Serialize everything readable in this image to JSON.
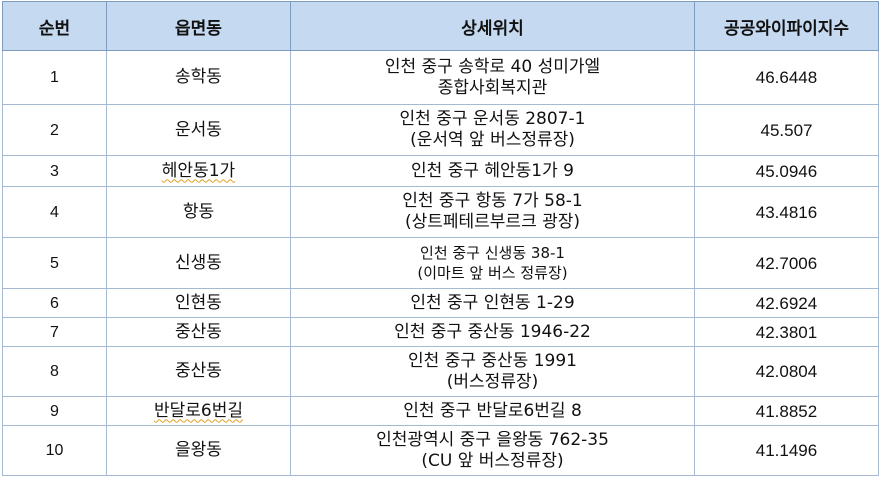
{
  "headers": {
    "rank": "순번",
    "dong": "읍면동",
    "location": "상세위치",
    "index": "공공와이파이지수"
  },
  "rows": [
    {
      "rank": "1",
      "dong": "송학동",
      "loc1": "인천 중구 송학로 40 성미가엘",
      "loc2": "종합사회복지관",
      "score": "46.6448"
    },
    {
      "rank": "2",
      "dong": "운서동",
      "loc1": "인천 중구 운서동 2807-1",
      "loc2": "(운서역 앞 버스정류장)",
      "score": "45.507"
    },
    {
      "rank": "3",
      "dong": "헤안동1가",
      "loc1": "인천 중구 헤안동1가 9",
      "loc2": "",
      "score": "45.0946"
    },
    {
      "rank": "4",
      "dong": "항동",
      "loc1": "인천 중구 항동 7가 58-1",
      "loc2": "(상트페테르부르크 광장)",
      "score": "43.4816"
    },
    {
      "rank": "5",
      "dong": "신생동",
      "loc1": "인천 중구 신생동 38-1",
      "loc2": "(이마트 앞 버스 정류장)",
      "score": "42.7006"
    },
    {
      "rank": "6",
      "dong": "인현동",
      "loc1": "인천 중구 인현동 1-29",
      "loc2": "",
      "score": "42.6924"
    },
    {
      "rank": "7",
      "dong": "중산동",
      "loc1": "인천 중구 중산동 1946-22",
      "loc2": "",
      "score": "42.3801"
    },
    {
      "rank": "8",
      "dong": "중산동",
      "loc1": "인천 중구 중산동 1991",
      "loc2": "(버스정류장)",
      "score": "42.0804"
    },
    {
      "rank": "9",
      "dong": "반달로6번길",
      "loc1": "인천 중구 반달로6번길 8",
      "loc2": "",
      "score": "41.8852"
    },
    {
      "rank": "10",
      "dong": "을왕동",
      "loc1": "인천광역시 중구 을왕동 762-35",
      "loc2": "(CU 앞 버스정류장)",
      "score": "41.1496"
    }
  ]
}
